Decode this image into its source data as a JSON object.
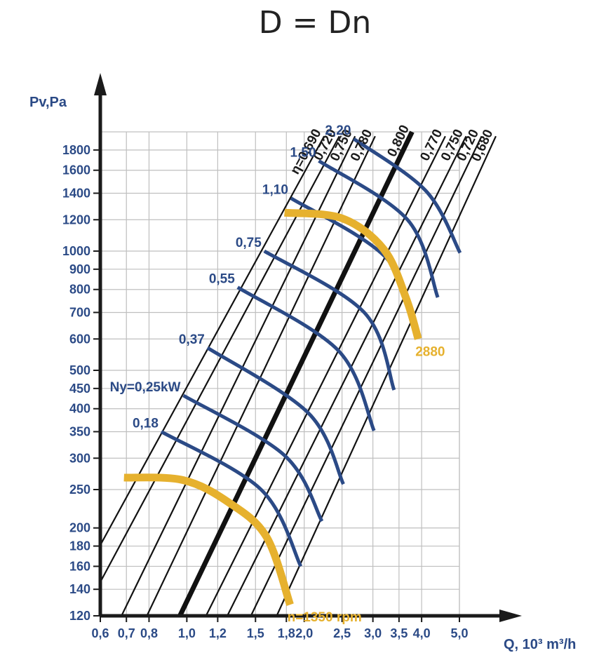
{
  "chart_data": {
    "type": "line",
    "title": "D = Dn",
    "xlabel": "Q, 10³ m³/h",
    "ylabel": "Pv,Pa",
    "x_scale": "log",
    "y_scale": "log",
    "xlim": [
      0.6,
      5.0
    ],
    "ylim": [
      120,
      2000
    ],
    "grid": true,
    "x_ticks": [
      {
        "value": 0.6,
        "label": "0,6"
      },
      {
        "value": 0.7,
        "label": "0,7"
      },
      {
        "value": 0.8,
        "label": "0,8"
      },
      {
        "value": 1.0,
        "label": "1,0"
      },
      {
        "value": 1.2,
        "label": "1,2"
      },
      {
        "value": 1.5,
        "label": "1,5"
      },
      {
        "value": 1.8,
        "label": "1,8"
      },
      {
        "value": 2.0,
        "label": "2,0"
      },
      {
        "value": 2.5,
        "label": "2,5"
      },
      {
        "value": 3.0,
        "label": "3,0"
      },
      {
        "value": 3.5,
        "label": "3,5"
      },
      {
        "value": 4.0,
        "label": "4,0"
      },
      {
        "value": 5.0,
        "label": "5,0"
      }
    ],
    "y_ticks": [
      {
        "value": 120,
        "label": "120"
      },
      {
        "value": 140,
        "label": "140"
      },
      {
        "value": 160,
        "label": "160"
      },
      {
        "value": 180,
        "label": "180"
      },
      {
        "value": 200,
        "label": "200"
      },
      {
        "value": 250,
        "label": "250"
      },
      {
        "value": 300,
        "label": "300"
      },
      {
        "value": 350,
        "label": "350"
      },
      {
        "value": 400,
        "label": "400"
      },
      {
        "value": 450,
        "label": "450"
      },
      {
        "value": 500,
        "label": "500"
      },
      {
        "value": 600,
        "label": "600"
      },
      {
        "value": 700,
        "label": "700"
      },
      {
        "value": 800,
        "label": "800"
      },
      {
        "value": 900,
        "label": "900"
      },
      {
        "value": 1000,
        "label": "1000"
      },
      {
        "value": 1200,
        "label": "1200"
      },
      {
        "value": 1400,
        "label": "1400"
      },
      {
        "value": 1600,
        "label": "1600"
      },
      {
        "value": 1800,
        "label": "1800"
      }
    ],
    "efficiency_lines": [
      {
        "label": "η=0,690",
        "points": [
          [
            0.6,
            181
          ],
          [
            2.25,
            1950
          ]
        ]
      },
      {
        "label": "0,720",
        "points": [
          [
            0.6,
            146
          ],
          [
            2.46,
            1950
          ]
        ]
      },
      {
        "label": "0,750",
        "points": [
          [
            0.68,
            120
          ],
          [
            2.7,
            1950
          ]
        ]
      },
      {
        "label": "0,780",
        "points": [
          [
            0.79,
            120
          ],
          [
            3.04,
            1950
          ]
        ]
      },
      {
        "label": "0,800",
        "bold": true,
        "points": [
          [
            0.96,
            120
          ],
          [
            3.78,
            2000
          ]
        ]
      },
      {
        "label": "0,770",
        "points": [
          [
            1.12,
            120
          ],
          [
            4.6,
            1950
          ]
        ]
      },
      {
        "label": "0,750",
        "points": [
          [
            1.27,
            120
          ],
          [
            5.2,
            1950
          ]
        ]
      },
      {
        "label": "0,720",
        "points": [
          [
            1.46,
            120
          ],
          [
            5.7,
            1950
          ]
        ]
      },
      {
        "label": "0,680",
        "points": [
          [
            1.7,
            120
          ],
          [
            6.2,
            1950
          ]
        ]
      }
    ],
    "power_curves": [
      {
        "label": "0,18",
        "points": [
          [
            0.86,
            350
          ],
          [
            1.55,
            250
          ],
          [
            1.96,
            160
          ]
        ]
      },
      {
        "label": "Ny=0,25kW",
        "points": [
          [
            0.98,
            432
          ],
          [
            1.78,
            305
          ],
          [
            2.22,
            208
          ]
        ]
      },
      {
        "label": "0,37",
        "points": [
          [
            1.13,
            570
          ],
          [
            2.05,
            390
          ],
          [
            2.52,
            258
          ]
        ]
      },
      {
        "label": "0,55",
        "points": [
          [
            1.35,
            810
          ],
          [
            2.45,
            560
          ],
          [
            3.02,
            352
          ]
        ]
      },
      {
        "label": "0,75",
        "points": [
          [
            1.58,
            1000
          ],
          [
            2.85,
            700
          ],
          [
            3.4,
            446
          ]
        ]
      },
      {
        "label": "1,10",
        "points": [
          [
            1.85,
            1360
          ],
          [
            3.25,
            960
          ],
          [
            3.95,
            612
          ]
        ]
      },
      {
        "label": "1,50",
        "points": [
          [
            2.18,
            1690
          ],
          [
            3.68,
            1200
          ],
          [
            4.4,
            764
          ]
        ]
      },
      {
        "label": "2,20",
        "points": [
          [
            2.68,
            1920
          ],
          [
            4.1,
            1420
          ],
          [
            5.02,
            990
          ]
        ]
      }
    ],
    "speed_curves": [
      {
        "label": "n=1350 rpm",
        "points": [
          [
            0.69,
            268
          ],
          [
            0.98,
            264
          ],
          [
            1.28,
            232
          ],
          [
            1.6,
            190
          ],
          [
            1.84,
            128
          ]
        ]
      },
      {
        "label": "2880",
        "points": [
          [
            1.78,
            1250
          ],
          [
            2.5,
            1210
          ],
          [
            3.2,
            1010
          ],
          [
            3.65,
            760
          ],
          [
            3.92,
            600
          ]
        ]
      }
    ],
    "colors": {
      "efficiency": "#111111",
      "power": "#2b4a86",
      "speed": "#e6b12e",
      "grid": "#bfbfbf",
      "axis": "#1a1a1a"
    }
  }
}
